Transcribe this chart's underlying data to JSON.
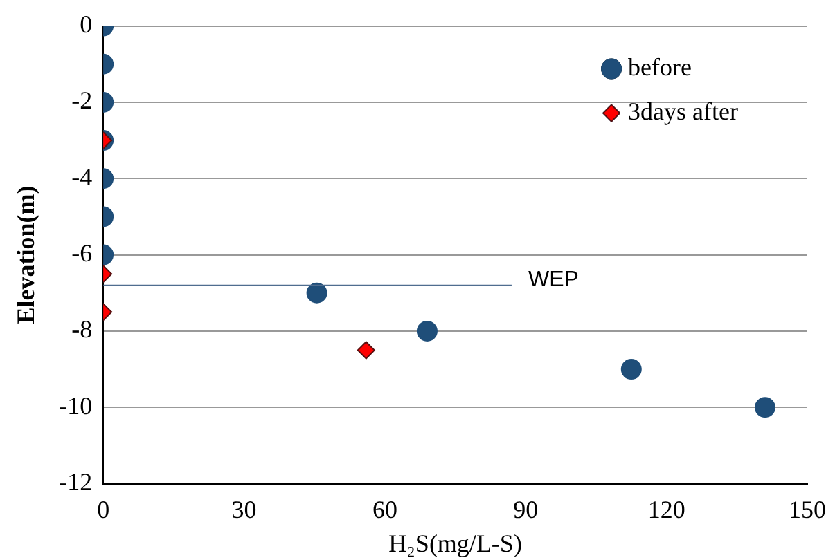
{
  "chart_data": {
    "type": "scatter",
    "xlabel": "H₂S(mg/L-S)",
    "ylabel": "Elevation(m)",
    "xlim": [
      0,
      150
    ],
    "xticks": [
      0,
      30,
      60,
      90,
      120,
      150
    ],
    "ylim": [
      -12,
      0
    ],
    "yticks": [
      -12,
      -10,
      -8,
      -6,
      -4,
      -2,
      0
    ],
    "grid": "y",
    "legend": "top right",
    "series": [
      {
        "name": "before",
        "marker": "circle",
        "color": "#1f4e79",
        "x": [
          0,
          0,
          0,
          0,
          0,
          0,
          0,
          45.5,
          69,
          112.5,
          141
        ],
        "values": [
          0,
          -1,
          -2,
          -3,
          -4,
          -5,
          -6,
          -7,
          -8,
          -9,
          -10
        ]
      },
      {
        "name": "3days after",
        "marker": "diamond",
        "color": "#ff0000",
        "x": [
          0,
          0,
          0,
          56
        ],
        "values": [
          -3,
          -6.5,
          -7.5,
          -8.5
        ]
      },
      {
        "type": "line",
        "marker": "none",
        "color": "#4f6d8f",
        "x": [
          0,
          87
        ],
        "values": [
          -6.8,
          -6.8
        ]
      }
    ],
    "annotations": [
      {
        "text": "WEP",
        "x": 87,
        "y": -6.8
      }
    ]
  }
}
